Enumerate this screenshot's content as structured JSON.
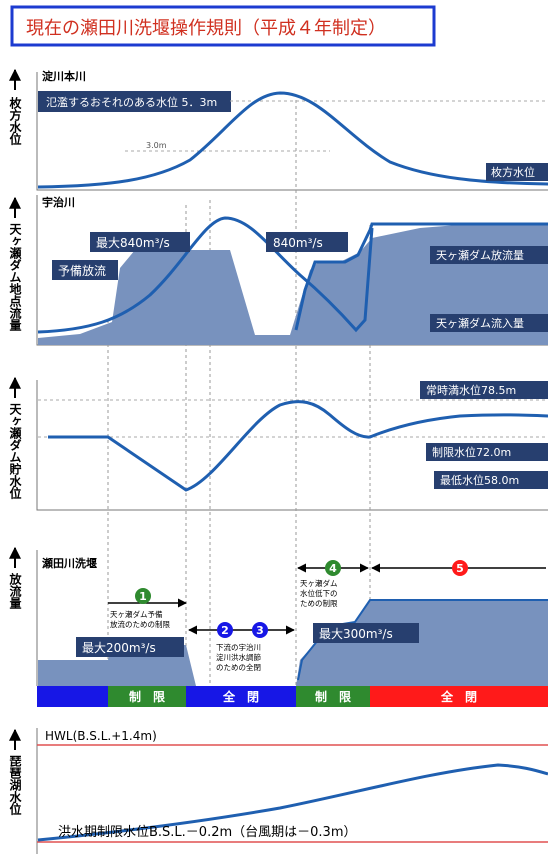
{
  "title": "現在の瀬田川洗堰操作規則（平成４年制定）",
  "colors": {
    "curve": "#1f5fb0",
    "fill": "#7892be",
    "label_bg": "#273f6f",
    "title_border": "#1c3bd0",
    "title_text": "#d03020",
    "green": "#2f8a2f",
    "blue": "#1717e6",
    "red": "#ff1a1a",
    "hwl": "#e05050"
  },
  "panel1": {
    "ylabel": "枚方水位",
    "tag": "淀川本川",
    "box": "氾濫するおそれのある水位 5．3m",
    "small": "3.0m",
    "curve_label": "枚方水位"
  },
  "panel2": {
    "ylabel": "天ヶ瀬ダム地点流量",
    "tag": "宇治川",
    "max1": "最大840m³/s",
    "pre": "予備放流",
    "max2": "840m³/s",
    "release": "天ヶ瀬ダム放流量",
    "inflow": "天ヶ瀬ダム流入量"
  },
  "panel3": {
    "ylabel": "天ヶ瀬ダム貯水位",
    "normal": "常時満水位78.5m",
    "limit": "制限水位72.0m",
    "min": "最低水位58.0m"
  },
  "panel4": {
    "ylabel": "放流量",
    "tag": "瀬田川洗堰",
    "max200": "最大200m³/s",
    "max300": "最大300m³/s",
    "n1": "1",
    "n1_text": [
      "天ヶ瀬ダム予備",
      "放流のための制限"
    ],
    "n2": "2",
    "n3": "3",
    "n23_text": [
      "下流の宇治川",
      "淀川洪水調節",
      "のための全閉"
    ],
    "n4": "4",
    "n4_text": [
      "天ヶ瀬ダム",
      "水位低下の",
      "ための制限"
    ],
    "n5": "5",
    "band": [
      "制　限",
      "全　閉",
      "制　限",
      "全　閉"
    ]
  },
  "panel5": {
    "ylabel": "琵琶湖水位",
    "hwl": "HWL(B.S.L.+1.4m)",
    "flood": "洪水期制限水位B.S.L.－0.2m（台風期は－0.3m）"
  }
}
